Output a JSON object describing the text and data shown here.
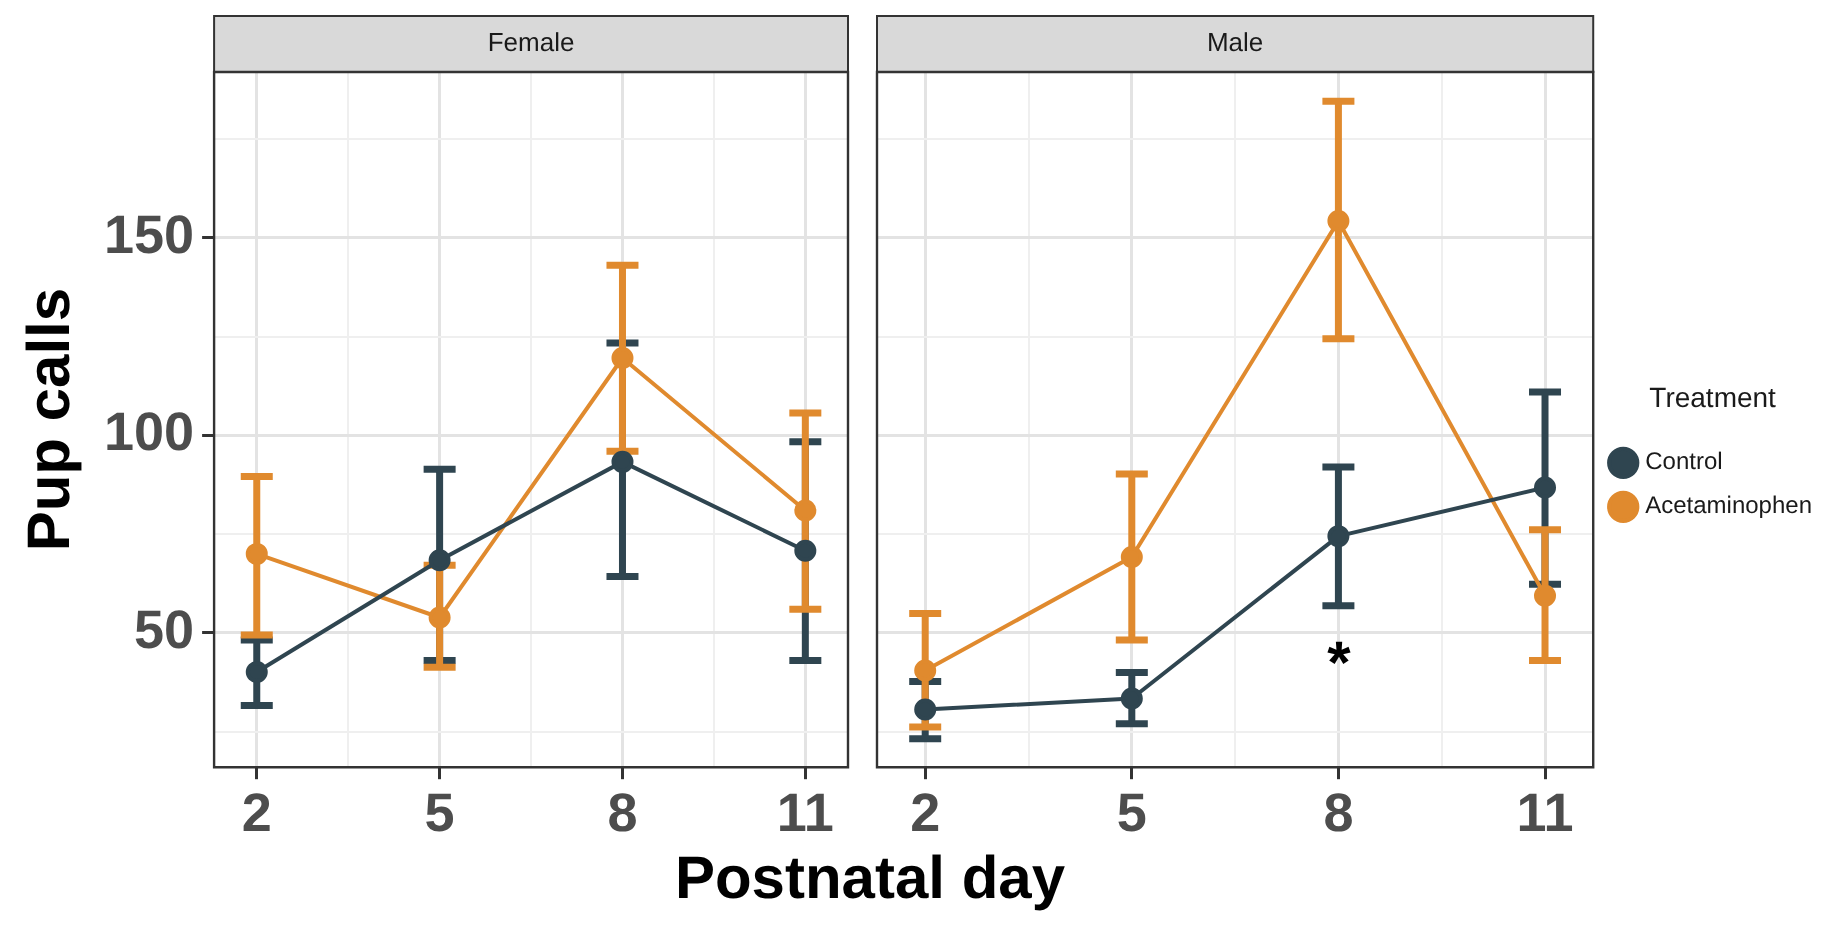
{
  "chart_data": [
    {
      "type": "line",
      "title": "Female",
      "ylabel": "Pup calls",
      "xlabel": "Postnatal day",
      "x": [
        2,
        5,
        8,
        11
      ],
      "xlim": [
        1.3,
        11.7
      ],
      "xticks": [
        2,
        {
          "value": 3.5,
          "label": null
        },
        5,
        {
          "value": 6.5,
          "label": null
        },
        8,
        {
          "value": 9.5,
          "label": null
        },
        11
      ],
      "ylim": [
        16,
        192
      ],
      "yticks": [
        {
          "value": 25,
          "label": null
        },
        50,
        {
          "value": 75,
          "label": null
        },
        100,
        {
          "value": 125,
          "label": null
        },
        150,
        {
          "value": 175,
          "label": null
        }
      ],
      "grid": true,
      "legend": false,
      "marker": "circle",
      "line_style": "solid",
      "series": [
        {
          "color": "#2f4550",
          "values": [
            40.1,
            68.4,
            93.3,
            70.8
          ],
          "errors": [
            [
              31.6,
              48.2
            ],
            [
              43,
              91.4
            ],
            [
              64.3,
              123.4
            ],
            [
              43,
              98.4
            ]
          ]
        },
        {
          "color": "#e08a2e",
          "values": [
            70,
            53.9,
            119.6,
            81
          ],
          "errors": [
            [
              49.5,
              89.6
            ],
            [
              41.3,
              67.1
            ],
            [
              96,
              143.1
            ],
            [
              56,
              105.7
            ]
          ]
        }
      ]
    },
    {
      "type": "line",
      "title": "Male",
      "legend_title": "Treatment",
      "x": [
        2,
        5,
        8,
        11
      ],
      "xlim": [
        1.3,
        11.7
      ],
      "xticks": [
        2,
        {
          "value": 3.5,
          "label": null
        },
        5,
        {
          "value": 6.5,
          "label": null
        },
        8,
        {
          "value": 9.5,
          "label": null
        },
        11
      ],
      "ylim": [
        16,
        192
      ],
      "yticks": [
        {
          "value": 25,
          "label": null
        },
        50,
        {
          "value": 75,
          "label": null
        },
        100,
        {
          "value": 125,
          "label": null
        },
        150,
        {
          "value": 175,
          "label": null
        }
      ],
      "tick_labels": "x",
      "grid": true,
      "legend": "right",
      "marker": "circle",
      "line_style": "solid",
      "annotations": [
        "*"
      ],
      "series": [
        {
          "name": "Control",
          "color": "#2f4550",
          "values": [
            30.6,
            33.4,
            74.5,
            86.8
          ],
          "errors": [
            [
              23.2,
              37.7
            ],
            [
              27,
              40
            ],
            [
              56.9,
              92
            ],
            [
              62.3,
              111
            ]
          ]
        },
        {
          "name": "Acetaminophen",
          "color": "#e08a2e",
          "values": [
            40.5,
            69.2,
            154.3,
            59.4
          ],
          "errors": [
            [
              26.2,
              54.9
            ],
            [
              48.2,
              90.2
            ],
            [
              124.5,
              184.6
            ],
            [
              43,
              76.1
            ]
          ]
        }
      ]
    }
  ]
}
